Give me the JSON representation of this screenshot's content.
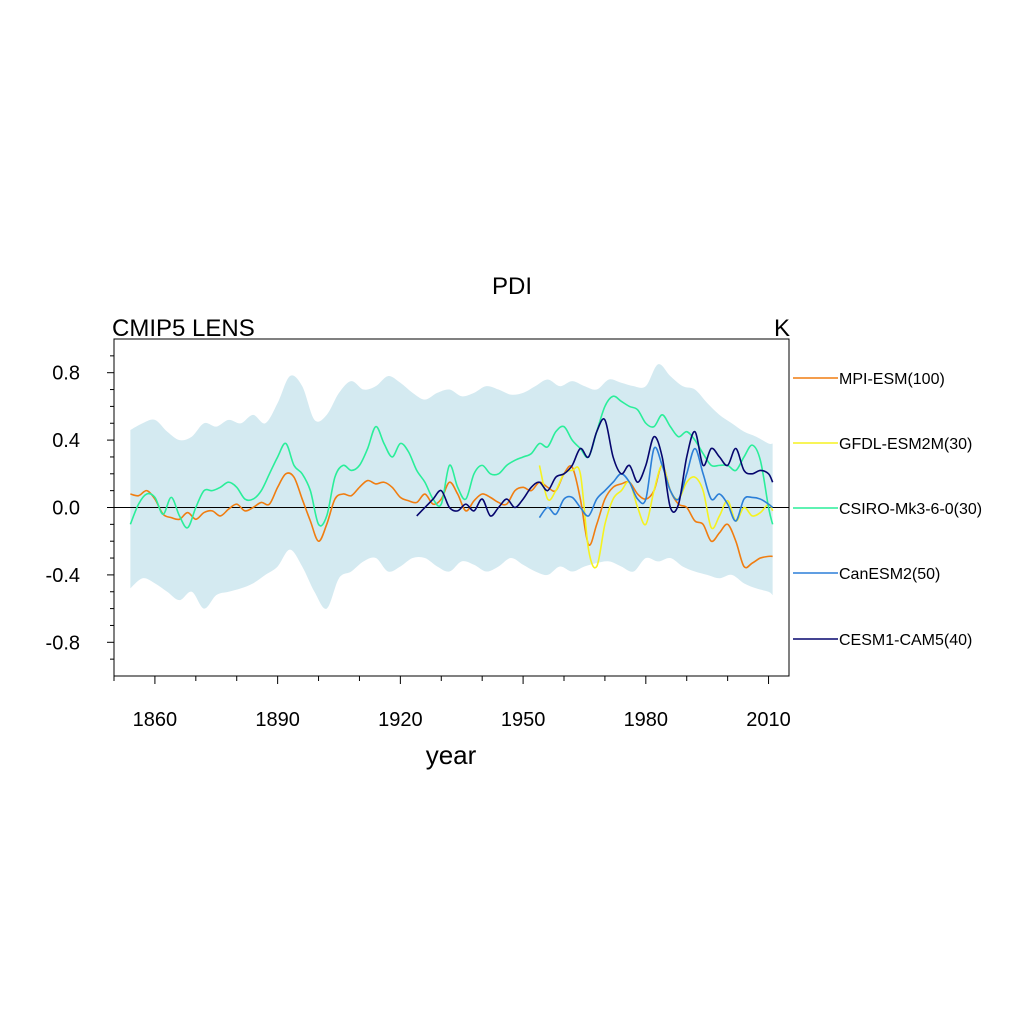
{
  "chart_data": {
    "type": "line",
    "title": "PDI",
    "left_label": "CMIP5 LENS",
    "right_label": "K",
    "xlabel": "year",
    "ylabel": "",
    "xlim": [
      1850,
      2015
    ],
    "ylim": [
      -1.0,
      1.0
    ],
    "x_ticks": [
      1860,
      1890,
      1920,
      1950,
      1980,
      2010
    ],
    "x_tick_labels": [
      "1860",
      "1890",
      "1920",
      "1950",
      "1980",
      "2010"
    ],
    "y_ticks": [
      0.8,
      0.4,
      0.0,
      -0.4,
      -0.8
    ],
    "y_tick_labels": [
      "0.8",
      "0.4",
      "0.0",
      "-0.4",
      "-0.8"
    ],
    "zero_line": true,
    "grid": false,
    "legend_position": "right",
    "spread_band": {
      "color": "#d4eaf1",
      "x": [
        1854,
        1857,
        1860,
        1863,
        1866,
        1869,
        1872,
        1875,
        1878,
        1881,
        1884,
        1887,
        1890,
        1893,
        1896,
        1899,
        1902,
        1905,
        1908,
        1911,
        1914,
        1917,
        1920,
        1923,
        1926,
        1929,
        1932,
        1935,
        1938,
        1941,
        1944,
        1947,
        1950,
        1953,
        1956,
        1959,
        1962,
        1965,
        1968,
        1971,
        1974,
        1977,
        1980,
        1983,
        1986,
        1989,
        1992,
        1995,
        1998,
        2001,
        2004,
        2007,
        2010,
        2011
      ],
      "upper": [
        0.46,
        0.5,
        0.52,
        0.45,
        0.4,
        0.42,
        0.5,
        0.48,
        0.52,
        0.5,
        0.55,
        0.5,
        0.62,
        0.78,
        0.72,
        0.52,
        0.55,
        0.68,
        0.75,
        0.7,
        0.72,
        0.78,
        0.74,
        0.68,
        0.64,
        0.68,
        0.7,
        0.66,
        0.68,
        0.72,
        0.7,
        0.67,
        0.68,
        0.72,
        0.76,
        0.72,
        0.75,
        0.72,
        0.7,
        0.76,
        0.74,
        0.72,
        0.72,
        0.85,
        0.78,
        0.72,
        0.7,
        0.62,
        0.55,
        0.5,
        0.45,
        0.42,
        0.38,
        0.38
      ],
      "lower": [
        -0.48,
        -0.42,
        -0.45,
        -0.5,
        -0.55,
        -0.5,
        -0.6,
        -0.52,
        -0.5,
        -0.48,
        -0.45,
        -0.4,
        -0.35,
        -0.25,
        -0.35,
        -0.5,
        -0.6,
        -0.42,
        -0.38,
        -0.32,
        -0.3,
        -0.38,
        -0.35,
        -0.3,
        -0.3,
        -0.35,
        -0.38,
        -0.32,
        -0.34,
        -0.38,
        -0.35,
        -0.3,
        -0.34,
        -0.38,
        -0.4,
        -0.35,
        -0.38,
        -0.35,
        -0.33,
        -0.32,
        -0.35,
        -0.38,
        -0.3,
        -0.32,
        -0.3,
        -0.35,
        -0.38,
        -0.4,
        -0.42,
        -0.4,
        -0.45,
        -0.48,
        -0.5,
        -0.52
      ]
    },
    "series": [
      {
        "name": "MPI-ESM(100)",
        "color": "#f07d10",
        "x": [
          1854,
          1856,
          1858,
          1860,
          1862,
          1864,
          1866,
          1868,
          1870,
          1872,
          1874,
          1876,
          1878,
          1880,
          1882,
          1884,
          1886,
          1888,
          1890,
          1892,
          1894,
          1896,
          1898,
          1900,
          1902,
          1904,
          1906,
          1908,
          1910,
          1912,
          1914,
          1916,
          1918,
          1920,
          1922,
          1924,
          1926,
          1928,
          1930,
          1932,
          1934,
          1936,
          1938,
          1940,
          1942,
          1944,
          1946,
          1948,
          1950,
          1952,
          1954,
          1956,
          1958,
          1960,
          1962,
          1964,
          1966,
          1968,
          1970,
          1972,
          1974,
          1976,
          1978,
          1980,
          1982,
          1984,
          1986,
          1988,
          1990,
          1992,
          1994,
          1996,
          1998,
          2000,
          2002,
          2004,
          2006,
          2008,
          2010,
          2011
        ],
        "values": [
          0.08,
          0.07,
          0.1,
          0.05,
          -0.04,
          -0.06,
          -0.07,
          -0.03,
          -0.07,
          -0.03,
          -0.02,
          -0.05,
          -0.01,
          0.02,
          -0.02,
          0.0,
          0.03,
          0.02,
          0.12,
          0.2,
          0.18,
          0.05,
          -0.08,
          -0.2,
          -0.1,
          0.05,
          0.08,
          0.07,
          0.12,
          0.16,
          0.14,
          0.15,
          0.12,
          0.06,
          0.04,
          0.03,
          0.08,
          0.02,
          0.05,
          0.15,
          0.08,
          -0.02,
          0.04,
          0.08,
          0.06,
          0.03,
          0.02,
          0.1,
          0.12,
          0.1,
          0.15,
          0.12,
          0.1,
          0.2,
          0.24,
          0.05,
          -0.22,
          -0.1,
          0.05,
          0.12,
          0.14,
          0.15,
          0.08,
          0.05,
          0.1,
          0.25,
          0.1,
          0.02,
          0.0,
          -0.08,
          -0.1,
          -0.2,
          -0.15,
          -0.1,
          -0.2,
          -0.35,
          -0.33,
          -0.3,
          -0.29,
          -0.29
        ]
      },
      {
        "name": "GFDL-ESM2M(30)",
        "color": "#f5f220",
        "x": [
          1954,
          1956,
          1958,
          1960,
          1962,
          1964,
          1966,
          1968,
          1970,
          1972,
          1974,
          1976,
          1978,
          1980,
          1982,
          1984,
          1986,
          1988,
          1990,
          1992,
          1994,
          1996,
          1998,
          2000,
          2002,
          2004,
          2006,
          2008,
          2010,
          2011
        ],
        "values": [
          0.25,
          0.05,
          0.1,
          0.2,
          0.22,
          0.2,
          -0.25,
          -0.35,
          -0.1,
          0.05,
          0.1,
          0.15,
          0.0,
          -0.1,
          0.1,
          0.25,
          0.1,
          0.05,
          0.15,
          0.18,
          0.1,
          -0.12,
          -0.05,
          0.04,
          -0.08,
          0.0,
          -0.05,
          -0.03,
          0.02,
          -0.02
        ]
      },
      {
        "name": "CSIRO-Mk3-6-0(30)",
        "color": "#2aee9a",
        "x": [
          1854,
          1856,
          1858,
          1860,
          1862,
          1864,
          1866,
          1868,
          1870,
          1872,
          1874,
          1876,
          1878,
          1880,
          1882,
          1884,
          1886,
          1888,
          1890,
          1892,
          1894,
          1896,
          1898,
          1900,
          1902,
          1904,
          1906,
          1908,
          1910,
          1912,
          1914,
          1916,
          1918,
          1920,
          1922,
          1924,
          1926,
          1928,
          1930,
          1932,
          1934,
          1936,
          1938,
          1940,
          1942,
          1944,
          1946,
          1948,
          1950,
          1952,
          1954,
          1956,
          1958,
          1960,
          1962,
          1964,
          1966,
          1968,
          1970,
          1972,
          1974,
          1976,
          1978,
          1980,
          1982,
          1984,
          1986,
          1988,
          1990,
          1992,
          1994,
          1996,
          1998,
          2000,
          2002,
          2004,
          2006,
          2008,
          2010,
          2011
        ],
        "values": [
          -0.1,
          0.02,
          0.08,
          0.06,
          -0.04,
          0.06,
          -0.05,
          -0.12,
          0.0,
          0.1,
          0.1,
          0.12,
          0.15,
          0.12,
          0.05,
          0.05,
          0.1,
          0.2,
          0.3,
          0.38,
          0.25,
          0.2,
          0.1,
          -0.1,
          -0.05,
          0.18,
          0.25,
          0.22,
          0.25,
          0.35,
          0.48,
          0.38,
          0.3,
          0.38,
          0.33,
          0.22,
          0.15,
          0.05,
          0.02,
          0.25,
          0.12,
          0.05,
          0.2,
          0.25,
          0.2,
          0.2,
          0.25,
          0.28,
          0.3,
          0.32,
          0.38,
          0.36,
          0.45,
          0.48,
          0.4,
          0.35,
          0.3,
          0.45,
          0.6,
          0.66,
          0.63,
          0.6,
          0.58,
          0.5,
          0.48,
          0.55,
          0.48,
          0.42,
          0.45,
          0.4,
          0.32,
          0.25,
          0.25,
          0.25,
          0.22,
          0.3,
          0.37,
          0.28,
          0.0,
          -0.1
        ]
      },
      {
        "name": "CanESM2(50)",
        "color": "#2b7fd8",
        "x": [
          1954,
          1956,
          1958,
          1960,
          1962,
          1964,
          1966,
          1968,
          1970,
          1972,
          1974,
          1976,
          1978,
          1980,
          1982,
          1984,
          1986,
          1988,
          1990,
          1992,
          1994,
          1996,
          1998,
          2000,
          2002,
          2004,
          2006,
          2008,
          2010,
          2011
        ],
        "values": [
          -0.06,
          0.0,
          -0.04,
          0.05,
          0.06,
          0.0,
          -0.05,
          0.05,
          0.1,
          0.15,
          0.2,
          0.15,
          0.05,
          0.05,
          0.35,
          0.25,
          0.1,
          0.05,
          0.2,
          0.35,
          0.2,
          0.05,
          0.08,
          0.02,
          -0.08,
          0.05,
          0.06,
          0.05,
          0.02,
          0.0
        ]
      },
      {
        "name": "CESM1-CAM5(40)",
        "color": "#06066e",
        "x": [
          1924,
          1926,
          1928,
          1930,
          1932,
          1934,
          1936,
          1938,
          1940,
          1942,
          1944,
          1946,
          1948,
          1950,
          1952,
          1954,
          1956,
          1958,
          1960,
          1962,
          1964,
          1966,
          1968,
          1970,
          1972,
          1974,
          1976,
          1978,
          1980,
          1982,
          1984,
          1986,
          1988,
          1990,
          1992,
          1994,
          1996,
          1998,
          2000,
          2002,
          2004,
          2006,
          2008,
          2010,
          2011
        ],
        "values": [
          -0.05,
          0.0,
          0.05,
          0.1,
          0.0,
          -0.02,
          0.02,
          -0.02,
          0.05,
          -0.05,
          0.0,
          0.05,
          0.0,
          0.05,
          0.12,
          0.15,
          0.1,
          0.18,
          0.2,
          0.25,
          0.35,
          0.3,
          0.45,
          0.52,
          0.3,
          0.2,
          0.25,
          0.15,
          0.25,
          0.42,
          0.3,
          0.0,
          0.02,
          0.3,
          0.45,
          0.25,
          0.35,
          0.3,
          0.25,
          0.35,
          0.22,
          0.2,
          0.22,
          0.2,
          0.15
        ]
      }
    ]
  }
}
